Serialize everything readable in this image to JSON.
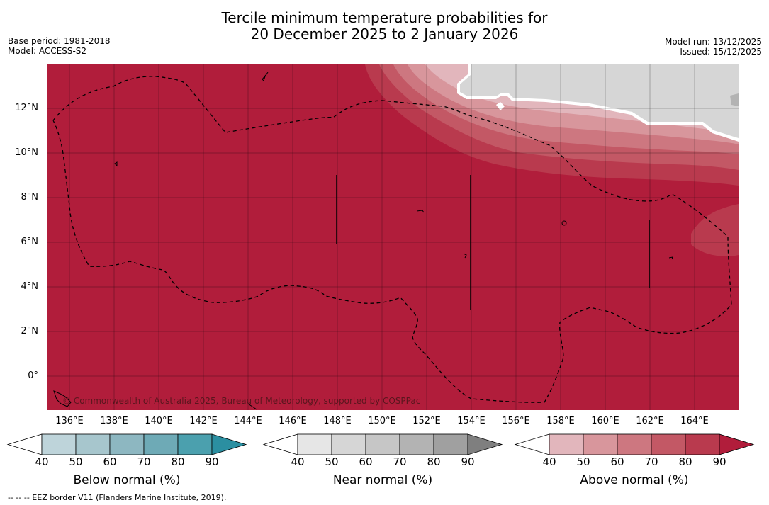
{
  "title_line1": "Tercile minimum temperature probabilities for",
  "title_line2": "20 December 2025 to 2 January 2026",
  "base_period": "Base period: 1981-2018",
  "model": "Model: ACCESS-S2",
  "model_run": "Model run: 13/12/2025",
  "issued": "Issued: 15/12/2025",
  "copyright": "© Commonwealth of Australia 2025, Bureau of Meteorology, supported by COSPPac",
  "footnote": "--  --  -- EEZ border V11 (Flanders Marine Institute, 2019).",
  "lat_labels": [
    "12°N",
    "10°N",
    "8°N",
    "6°N",
    "4°N",
    "2°N",
    "0°"
  ],
  "lon_labels": [
    "136°E",
    "138°E",
    "140°E",
    "142°E",
    "144°E",
    "146°E",
    "148°E",
    "150°E",
    "152°E",
    "154°E",
    "156°E",
    "158°E",
    "160°E",
    "162°E",
    "164°E"
  ],
  "colorbars": [
    {
      "title": "Below normal (%)",
      "ticks": [
        "40",
        "50",
        "60",
        "70",
        "80",
        "90"
      ],
      "colors": [
        "#ffffff",
        "#bed4da",
        "#a7c6cd",
        "#8db7c1",
        "#6eaab6",
        "#4ba0ae",
        "#2b8fa1"
      ]
    },
    {
      "title": "Near normal (%)",
      "ticks": [
        "40",
        "50",
        "60",
        "70",
        "80",
        "90"
      ],
      "colors": [
        "#ffffff",
        "#e6e6e6",
        "#d6d6d6",
        "#c6c6c6",
        "#b3b3b3",
        "#a0a0a0",
        "#7f7f7f"
      ]
    },
    {
      "title": "Above normal (%)",
      "ticks": [
        "40",
        "50",
        "60",
        "70",
        "80",
        "90"
      ],
      "colors": [
        "#ffffff",
        "#e2b6bc",
        "#d8969c",
        "#cd7780",
        "#c35865",
        "#b93a4e",
        "#b11d3b"
      ]
    }
  ],
  "colors": {
    "above_90": "#b11d3b",
    "above_80": "#b93a4e",
    "above_70": "#c35865",
    "above_60": "#cd7780",
    "above_50": "#d8969c",
    "near_50": "#d6d6d6",
    "near_60": "#c6c6c6"
  }
}
